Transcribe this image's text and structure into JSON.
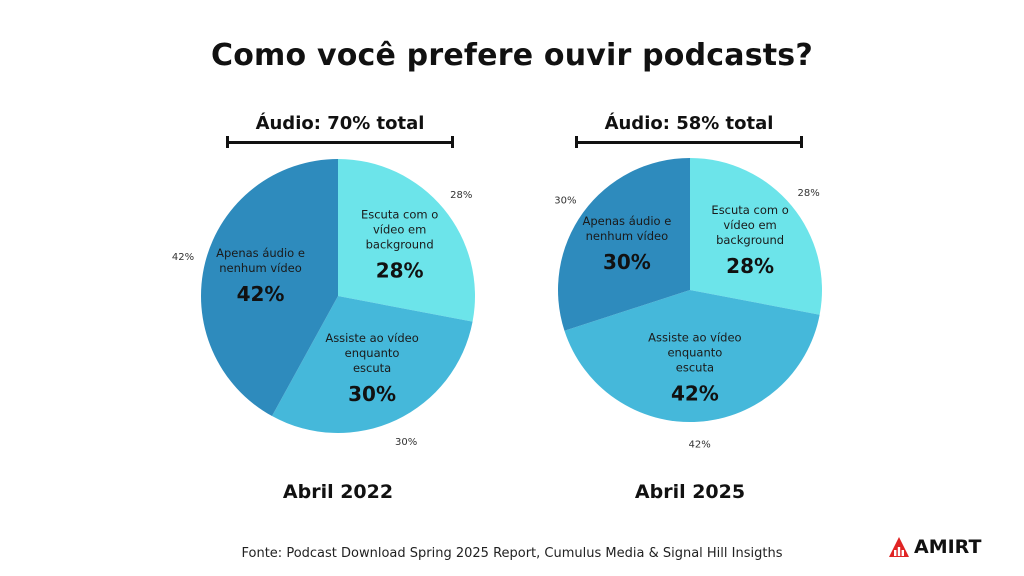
{
  "title": "Como você prefere ouvir podcasts?",
  "source": "Fonte: Podcast Download Spring 2025 Report, Cumulus Media & Signal Hill Insigths",
  "logo_text": "AMIRT",
  "colors": {
    "dark": "#2e8bbd",
    "medium": "#45b8da",
    "light": "#6ce4ea"
  },
  "chart_data": [
    {
      "type": "pie",
      "period": "Abril 2022",
      "bracket_label": "Áudio: 70% total",
      "slices": [
        {
          "label": "Escuta com o vídeo em background",
          "lines": [
            "Escuta com o",
            "vídeo em",
            "background"
          ],
          "value": 28,
          "display": "28%",
          "outer": "28%",
          "color": "#6ce4ea"
        },
        {
          "label": "Assiste ao vídeo enquanto escuta",
          "lines": [
            "Assiste ao vídeo",
            "enquanto",
            "escuta"
          ],
          "value": 30,
          "display": "30%",
          "outer": "30%",
          "color": "#45b8da"
        },
        {
          "label": "Apenas áudio e nenhum vídeo",
          "lines": [
            "Apenas áudio e",
            "nenhum vídeo"
          ],
          "value": 42,
          "display": "42%",
          "outer": "42%",
          "color": "#2e8bbd"
        }
      ]
    },
    {
      "type": "pie",
      "period": "Abril 2025",
      "bracket_label": "Áudio: 58% total",
      "slices": [
        {
          "label": "Escuta com o vídeo em background",
          "lines": [
            "Escuta com o",
            "vídeo em",
            "background"
          ],
          "value": 28,
          "display": "28%",
          "outer": "28%",
          "color": "#6ce4ea"
        },
        {
          "label": "Assiste ao vídeo enquanto escuta",
          "lines": [
            "Assiste ao vídeo",
            "enquanto",
            "escuta"
          ],
          "value": 42,
          "display": "42%",
          "outer": "42%",
          "color": "#45b8da"
        },
        {
          "label": "Apenas áudio e nenhum vídeo",
          "lines": [
            "Apenas áudio e",
            "nenhum vídeo"
          ],
          "value": 30,
          "display": "30%",
          "outer": "30%",
          "color": "#2e8bbd"
        }
      ]
    }
  ]
}
